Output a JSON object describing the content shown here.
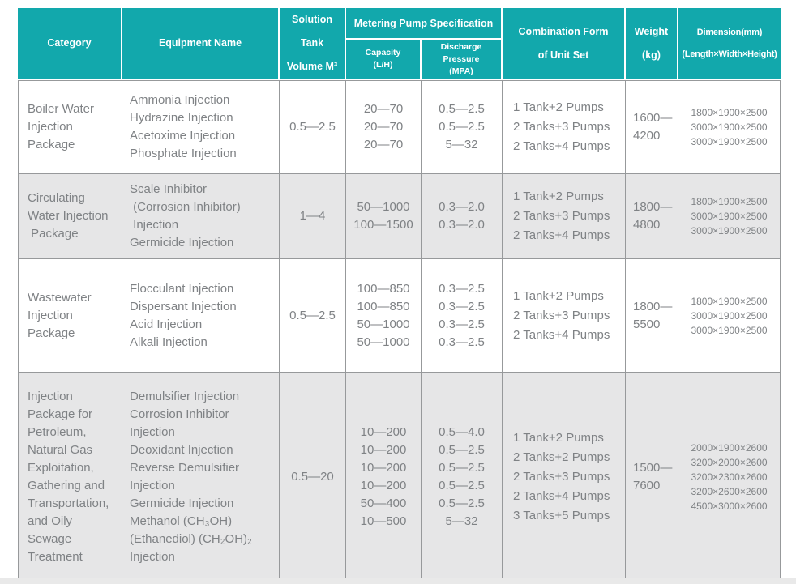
{
  "colors": {
    "header_bg": "#12a8ac",
    "header_text": "#ffffff",
    "row_bg": "#ffffff",
    "row_alt_bg": "#e6e6e7",
    "border": "#97999b",
    "body_text": "#7f8285"
  },
  "header": {
    "category": "Category",
    "equipment": "Equipment Name",
    "tank": "Solution Tank\nVolume M³",
    "pump_spec": "Metering Pump Specification",
    "capacity": "Capacity\n(L/H)",
    "discharge": "Discharge Pressure\n(MPA)",
    "combination": "Combination Form\nof Unit Set",
    "weight": "Weight\n(kg)",
    "dimension": "Dimension(mm)\n(Length×Width×Height)"
  },
  "rows": [
    {
      "category": "Boiler Water\nInjection\nPackage",
      "equipment": "Ammonia Injection\nHydrazine Injection\nAcetoxime Injection\nPhosphate Injection",
      "tank": "0.5—2.5",
      "capacity": "20—70\n20—70\n20—70",
      "discharge": "0.5—2.5\n0.5—2.5\n5—32",
      "combination": "1 Tank+2 Pumps\n2 Tanks+3 Pumps\n2 Tanks+4 Pumps",
      "weight": "1600—\n4200",
      "dimension": "1800×1900×2500\n3000×1900×2500\n3000×1900×2500"
    },
    {
      "category": "Circulating\nWater Injection\n Package",
      "equipment": "Scale Inhibitor\n (Corrosion Inhibitor)\n Injection\nGermicide Injection",
      "tank": "1—4",
      "capacity": "50—1000\n100—1500",
      "discharge": "0.3—2.0\n0.3—2.0",
      "combination": "1 Tank+2 Pumps\n2 Tanks+3 Pumps\n2 Tanks+4 Pumps",
      "weight": "1800—\n4800",
      "dimension": "1800×1900×2500\n3000×1900×2500\n3000×1900×2500"
    },
    {
      "category": "Wastewater\nInjection\nPackage",
      "equipment": "Flocculant Injection\nDispersant Injection\nAcid Injection\nAlkali Injection",
      "tank": "0.5—2.5",
      "capacity": "100—850\n100—850\n50—1000\n50—1000",
      "discharge": "0.3—2.5\n0.3—2.5\n0.3—2.5\n0.3—2.5",
      "combination": "1 Tank+2 Pumps\n2 Tanks+3 Pumps\n2 Tanks+4 Pumps",
      "weight": "1800—\n5500",
      "dimension": "1800×1900×2500\n3000×1900×2500\n3000×1900×2500"
    },
    {
      "category": "Injection\nPackage for\nPetroleum,\nNatural Gas\nExploitation,\nGathering and\nTransportation,\nand Oily\nSewage\nTreatment",
      "equipment": "Demulsifier Injection\nCorrosion Inhibitor\nInjection\nDeoxidant Injection\nReverse Demulsifier\nInjection\nGermicide Injection\nMethanol (CH₃OH)\n(Ethanediol) (CH₂OH)₂\nInjection",
      "tank": "0.5—20",
      "capacity": "10—200\n10—200\n10—200\n10—200\n50—400\n10—500",
      "discharge": "0.5—4.0\n0.5—2.5\n0.5—2.5\n0.5—2.5\n0.5—2.5\n5—32",
      "combination": "1 Tank+2 Pumps\n2 Tanks+2 Pumps\n2 Tanks+3 Pumps\n2 Tanks+4 Pumps\n3 Tanks+5 Pumps",
      "weight": "1500—\n7600",
      "dimension": "2000×1900×2600\n3200×2000×2600\n3200×2300×2600\n3200×2600×2600\n4500×3000×2600"
    }
  ]
}
